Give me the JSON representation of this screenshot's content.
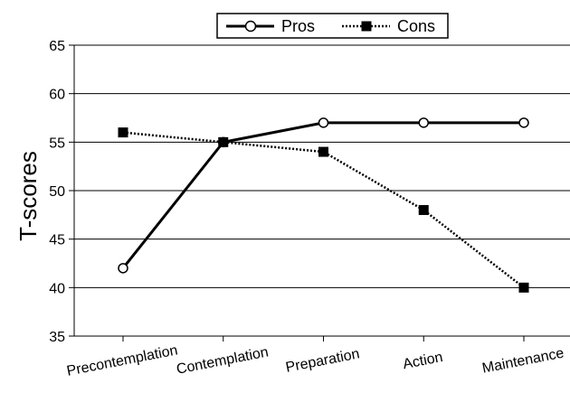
{
  "chart_data": {
    "type": "line",
    "categories": [
      "Precontemplation",
      "Contemplation",
      "Preparation",
      "Action",
      "Maintenance"
    ],
    "series": [
      {
        "name": "Pros",
        "values": [
          42,
          55,
          57,
          57,
          57
        ],
        "style": "solid",
        "marker": "open-circle"
      },
      {
        "name": "Cons",
        "values": [
          56,
          55,
          54,
          48,
          40
        ],
        "style": "dotted",
        "marker": "filled-square"
      }
    ],
    "title": "",
    "xlabel": "",
    "ylabel": "T-scores",
    "ylim": [
      35,
      65
    ],
    "yticks": [
      35,
      40,
      45,
      50,
      55,
      60,
      65
    ],
    "grid": "horizontal",
    "legend_position": "top-center",
    "colors": {
      "line": "#000000",
      "background": "#ffffff"
    }
  }
}
